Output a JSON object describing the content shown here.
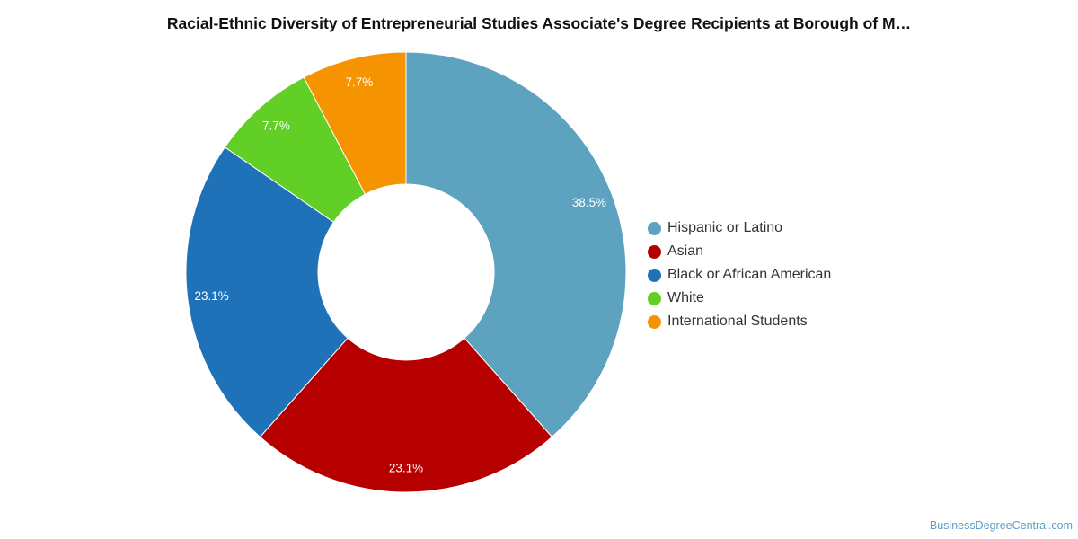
{
  "chart_data": {
    "type": "pie",
    "title": "Racial-Ethnic Diversity of Entrepreneurial Studies Associate's Degree Recipients at Borough of M…",
    "categories": [
      "Hispanic or Latino",
      "Asian",
      "Black or African American",
      "White",
      "International Students"
    ],
    "values": [
      38.5,
      23.1,
      23.1,
      7.7,
      7.7
    ],
    "data_labels": [
      "38.5%",
      "23.1%",
      "23.1%",
      "7.7%",
      "7.7%"
    ],
    "colors": [
      "#5da2bf",
      "#b60000",
      "#1f72b8",
      "#62cf26",
      "#f59300"
    ],
    "donut": true,
    "legend_position": "right"
  },
  "watermark": "BusinessDegreeCentral.com"
}
